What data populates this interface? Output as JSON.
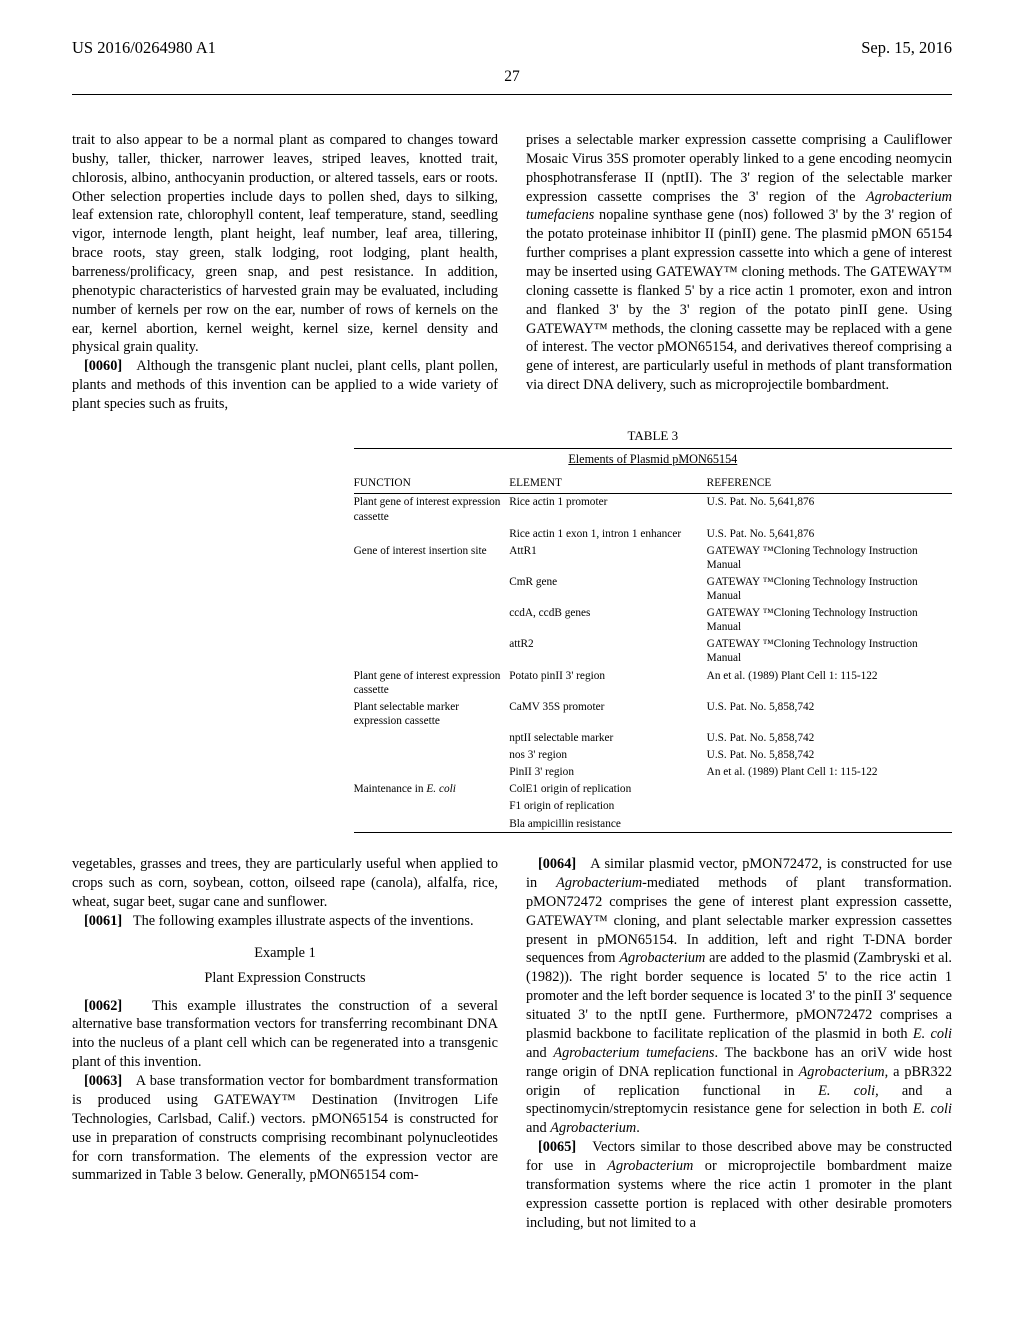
{
  "header": {
    "pubNo": "US 2016/0264980 A1",
    "date": "Sep. 15, 2016",
    "pageNo": "27"
  },
  "leftCol": {
    "p1": "trait to also appear to be a normal plant as compared to changes toward bushy, taller, thicker, narrower leaves, striped leaves, knotted trait, chlorosis, albino, anthocyanin production, or altered tassels, ears or roots. Other selection properties include days to pollen shed, days to silking, leaf extension rate, chlorophyll content, leaf temperature, stand, seedling vigor, internode length, plant height, leaf number, leaf area, tillering, brace roots, stay green, stalk lodging, root lodging, plant health, barreness/prolificacy, green snap, and pest resistance. In addition, phenotypic characteristics of harvested grain may be evaluated, including number of kernels per row on the ear, number of rows of kernels on the ear, kernel abortion, kernel weight, kernel size, kernel density and physical grain quality.",
    "p2_num": "[0060]",
    "p2": "Although the transgenic plant nuclei, plant cells, plant pollen, plants and methods of this invention can be applied to a wide variety of plant species such as fruits,"
  },
  "rightCol": {
    "p1": "prises a selectable marker expression cassette comprising a Cauliflower Mosaic Virus 35S promoter operably linked to a gene encoding neomycin phosphotransferase II (nptII). The 3' region of the selectable marker expression cassette comprises the 3' region of the ",
    "p1_ital": "Agrobacterium tumefaciens",
    "p1_cont": " nopaline synthase gene (nos) followed 3' by the 3' region of the potato proteinase inhibitor II (pinII) gene. The plasmid pMON 65154 further comprises a plant expression cassette into which a gene of interest may be inserted using GATEWAY™ cloning methods. The GATEWAY™ cloning cassette is flanked 5' by a rice actin 1 promoter, exon and intron and flanked 3' by the 3' region of the potato pinII gene. Using GATEWAY™ methods, the cloning cassette may be replaced with a gene of interest. The vector pMON65154, and derivatives thereof comprising a gene of interest, are particularly useful in methods of plant transformation via direct DNA delivery, such as microprojectile bombardment."
  },
  "table": {
    "caption": "TABLE 3",
    "title": "Elements of Plasmid pMON65154",
    "headers": [
      "FUNCTION",
      "ELEMENT",
      "REFERENCE"
    ],
    "rows": [
      [
        "Plant gene of interest expression cassette",
        "Rice actin 1 promoter",
        "U.S. Pat. No. 5,641,876"
      ],
      [
        "",
        "Rice actin 1 exon 1, intron 1 enhancer",
        "U.S. Pat. No. 5,641,876"
      ],
      [
        "Gene of interest insertion site",
        "AttR1",
        "GATEWAY ™Cloning Technology Instruction Manual"
      ],
      [
        "",
        "CmR gene",
        "GATEWAY ™Cloning Technology Instruction Manual"
      ],
      [
        "",
        "ccdA, ccdB genes",
        "GATEWAY ™Cloning Technology Instruction Manual"
      ],
      [
        "",
        "attR2",
        "GATEWAY ™Cloning Technology Instruction Manual"
      ],
      [
        "Plant gene of interest expression cassette",
        "Potato pinII 3' region",
        "An et al. (1989) Plant Cell 1: 115-122"
      ],
      [
        "Plant selectable marker expression cassette",
        "CaMV 35S promoter",
        "U.S. Pat. No. 5,858,742"
      ],
      [
        "",
        "nptII selectable marker",
        "U.S. Pat. No. 5,858,742"
      ],
      [
        "",
        "nos 3' region",
        "U.S. Pat. No. 5,858,742"
      ],
      [
        "",
        "PinII 3' region",
        "An et al. (1989) Plant Cell 1: 115-122"
      ],
      [
        "Maintenance in ",
        "ColE1 origin of replication",
        ""
      ],
      [
        "",
        "F1 origin of replication",
        ""
      ],
      [
        "",
        "Bla ampicillin resistance",
        ""
      ]
    ],
    "ecoli": "E. coli"
  },
  "bottomLeft": {
    "p1": "vegetables, grasses and trees, they are particularly useful when applied to crops such as corn, soybean, cotton, oilseed rape (canola), alfalfa, rice, wheat, sugar beet, sugar cane and sunflower.",
    "p2_num": "[0061]",
    "p2": "The following examples illustrate aspects of the inventions.",
    "exTitle": "Example 1",
    "exSub": "Plant Expression Constructs",
    "p3_num": "[0062]",
    "p3": "This example illustrates the construction of a several alternative base transformation vectors for transferring recombinant DNA into the nucleus of a plant cell which can be regenerated into a transgenic plant of this invention.",
    "p4_num": "[0063]",
    "p4": "A base transformation vector for bombardment transformation is produced using GATEWAY™ Destination (Invitrogen Life Technologies, Carlsbad, Calif.) vectors. pMON65154 is constructed for use in preparation of constructs comprising recombinant polynucleotides for corn transformation. The elements of the expression vector are summarized in Table 3 below. Generally, pMON65154 com-"
  },
  "bottomRight": {
    "p1_num": "[0064]",
    "p1a": "A similar plasmid vector, pMON72472, is constructed for use in ",
    "p1_ital1": "Agrobacterium",
    "p1b": "-mediated methods of plant transformation. pMON72472 comprises the gene of interest plant expression cassette, GATEWAY™ cloning, and plant selectable marker expression cassettes present in pMON65154. In addition, left and right T-DNA border sequences from ",
    "p1_ital2": "Agrobacterium",
    "p1c": " are added to the plasmid (Zambryski et al. (1982)). The right border sequence is located 5' to the rice actin 1 promoter and the left border sequence is located 3' to the pinII 3' sequence situated 3' to the nptII gene. Furthermore, pMON72472 comprises a plasmid backbone to facilitate replication of the plasmid in both ",
    "p1_ital3": "E. coli",
    "p1d": " and ",
    "p1_ital4": "Agrobacterium tumefaciens",
    "p1e": ". The backbone has an oriV wide host range origin of DNA replication functional in ",
    "p1_ital5": "Agrobacterium",
    "p1f": ", a pBR322 origin of replication functional in ",
    "p1_ital6": "E. coli",
    "p1g": ", and a spectinomycin/streptomycin resistance gene for selection in both ",
    "p1_ital7": "E. coli",
    "p1h": " and ",
    "p1_ital8": "Agrobacterium",
    "p1i": ".",
    "p2_num": "[0065]",
    "p2a": "Vectors similar to those described above may be constructed for use in ",
    "p2_ital1": "Agrobacterium",
    "p2b": " or microprojectile bombardment maize transformation systems where the rice actin 1 promoter in the plant expression cassette portion is replaced with other desirable promoters including, but not limited to a"
  }
}
